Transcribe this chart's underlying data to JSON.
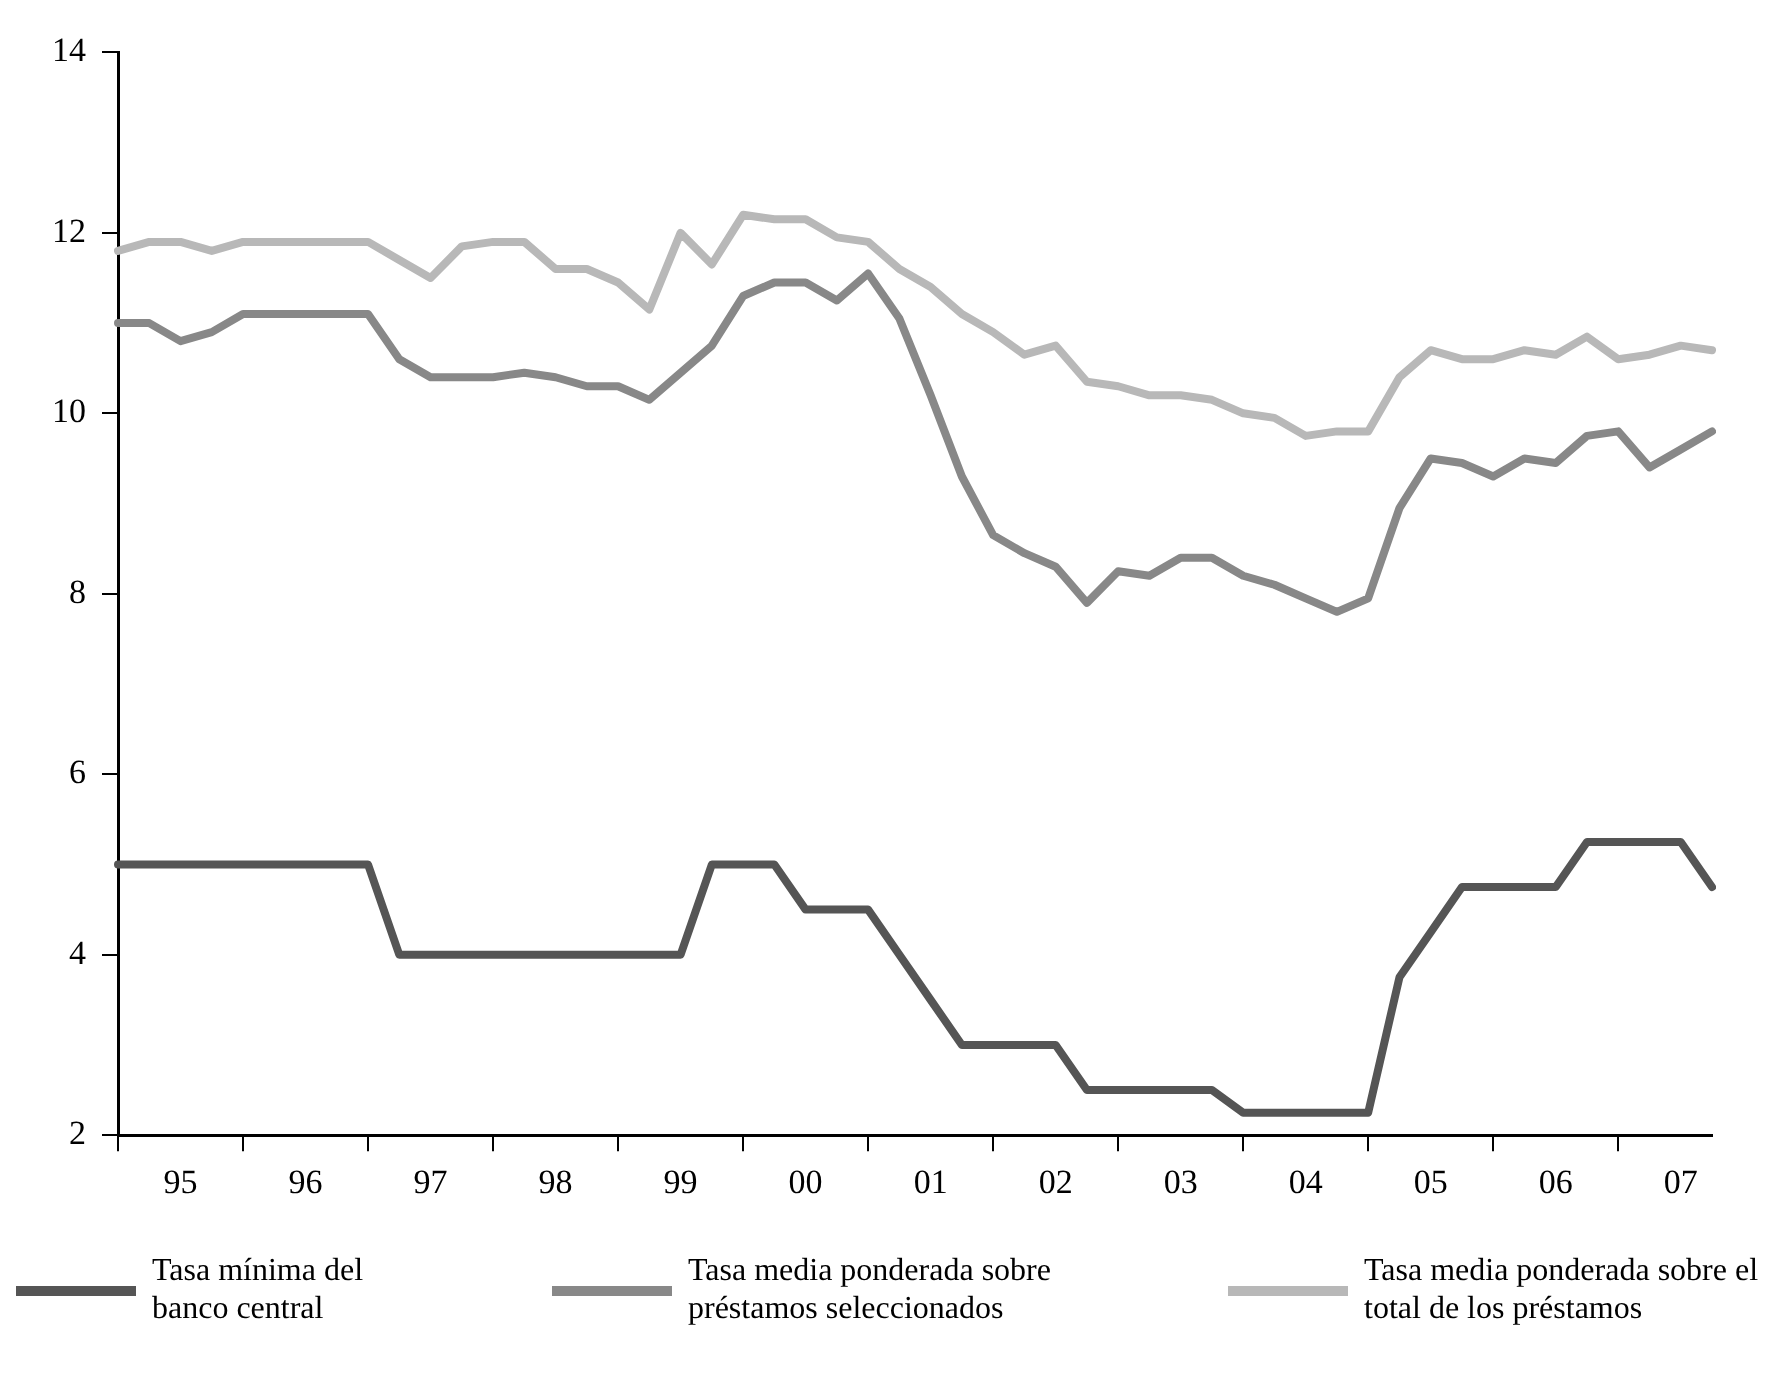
{
  "chart_data": {
    "type": "line",
    "categories": [
      null,
      null,
      "95",
      null,
      null,
      null,
      "96",
      null,
      null,
      null,
      "97",
      null,
      null,
      null,
      "98",
      null,
      null,
      null,
      "99",
      null,
      null,
      null,
      "00",
      null,
      null,
      null,
      "01",
      null,
      null,
      null,
      "02",
      null,
      null,
      null,
      "03",
      null,
      null,
      null,
      "04",
      null,
      null,
      null,
      "05",
      null,
      null,
      null,
      "06",
      null,
      null,
      null,
      "07",
      null
    ],
    "series": [
      {
        "name": "Tasa mínima del banco central",
        "color": "#555555",
        "values": [
          5,
          5,
          5,
          5,
          5,
          5,
          5,
          5,
          5,
          4,
          4,
          4,
          4,
          4,
          4,
          4,
          4,
          4,
          4,
          5,
          5,
          5,
          4.5,
          4.5,
          4.5,
          4,
          3.5,
          3,
          3,
          3,
          3,
          2.5,
          2.5,
          2.5,
          2.5,
          2.5,
          2.25,
          2.25,
          2.25,
          2.25,
          2.25,
          3.75,
          4.25,
          4.75,
          4.75,
          4.75,
          4.75,
          5.25,
          5.25,
          5.25,
          5.25,
          4.75
        ]
      },
      {
        "name": "Tasa media ponderada sobre préstamos seleccionados",
        "color": "#888888",
        "values": [
          11,
          11,
          10.8,
          10.9,
          11.1,
          11.1,
          11.1,
          11.1,
          11.1,
          10.6,
          10.4,
          10.4,
          10.4,
          10.45,
          10.4,
          10.3,
          10.3,
          10.15,
          10.45,
          10.75,
          11.3,
          11.45,
          11.45,
          11.25,
          11.55,
          11.05,
          10.2,
          9.3,
          8.65,
          8.45,
          8.3,
          7.9,
          8.25,
          8.2,
          8.4,
          8.4,
          8.2,
          8.1,
          7.95,
          7.8,
          7.95,
          8.95,
          9.5,
          9.45,
          9.3,
          9.5,
          9.45,
          9.75,
          9.8,
          9.4,
          9.6,
          9.8
        ]
      },
      {
        "name": "Tasa media ponderada sobre el total de los préstamos",
        "color": "#b8b8b8",
        "values": [
          11.8,
          11.9,
          11.9,
          11.8,
          11.9,
          11.9,
          11.9,
          11.9,
          11.9,
          11.7,
          11.5,
          11.85,
          11.9,
          11.9,
          11.6,
          11.6,
          11.45,
          11.15,
          12,
          11.65,
          12.2,
          12.15,
          12.15,
          11.95,
          11.9,
          11.6,
          11.4,
          11.1,
          10.9,
          10.65,
          10.75,
          10.35,
          10.3,
          10.2,
          10.2,
          10.15,
          10,
          9.95,
          9.75,
          9.8,
          9.8,
          10.4,
          10.7,
          10.6,
          10.6,
          10.7,
          10.65,
          10.85,
          10.6,
          10.65,
          10.75,
          10.7
        ]
      }
    ],
    "ylim": [
      2,
      14
    ],
    "yticks": [
      2,
      4,
      6,
      8,
      10,
      12,
      14
    ],
    "grid": false,
    "legend": "bottom",
    "marker": "none",
    "line_style": "solid"
  }
}
